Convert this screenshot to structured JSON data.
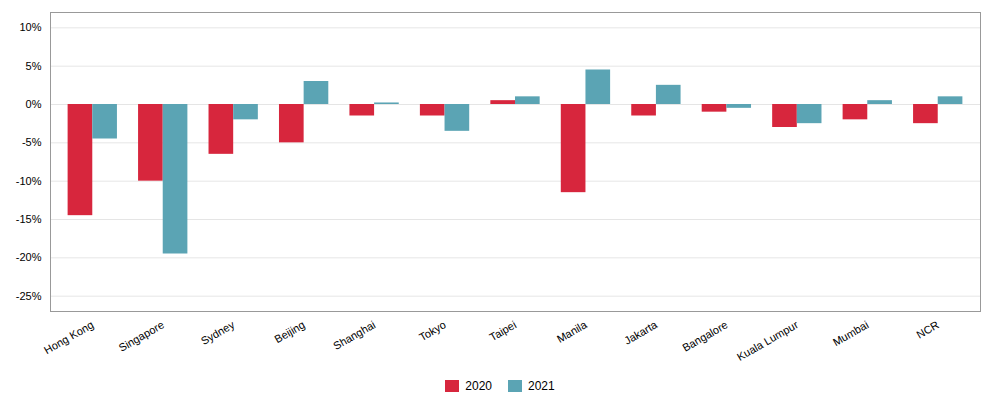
{
  "chart_data": {
    "type": "bar",
    "categories": [
      "Hong Kong",
      "Singapore",
      "Sydney",
      "Beijing",
      "Shanghai",
      "Tokyo",
      "Taipei",
      "Manila",
      "Jakarta",
      "Bangalore",
      "Kuala Lumpur",
      "Mumbai",
      "NCR"
    ],
    "series": [
      {
        "name": "2020",
        "color": "#d7263d",
        "values": [
          -14.5,
          -10.0,
          -6.5,
          -5.0,
          -1.5,
          -1.5,
          0.5,
          -11.5,
          -1.5,
          -1.0,
          -3.0,
          -2.0,
          -2.5
        ]
      },
      {
        "name": "2021",
        "color": "#5ba4b4",
        "values": [
          -4.5,
          -19.5,
          -2.0,
          3.0,
          0.2,
          -3.5,
          1.0,
          4.5,
          2.5,
          -0.5,
          -2.5,
          0.5,
          1.0
        ]
      }
    ],
    "ylim": [
      -27,
      12
    ],
    "yticks": [
      {
        "value": 10,
        "label": "10%"
      },
      {
        "value": 5,
        "label": "5%"
      },
      {
        "value": 0,
        "label": "0%"
      },
      {
        "value": -5,
        "label": "-5%"
      },
      {
        "value": -10,
        "label": "-10%"
      },
      {
        "value": -15,
        "label": "-15%"
      },
      {
        "value": -20,
        "label": "-20%"
      },
      {
        "value": -25,
        "label": "-25%"
      }
    ],
    "grid": true,
    "legend": "bottom"
  }
}
